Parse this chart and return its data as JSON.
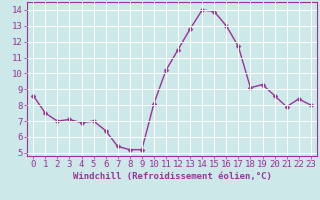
{
  "x": [
    0,
    1,
    2,
    3,
    4,
    5,
    6,
    7,
    8,
    9,
    10,
    11,
    12,
    13,
    14,
    15,
    16,
    17,
    18,
    19,
    20,
    21,
    22,
    23
  ],
  "y": [
    8.6,
    7.5,
    7.0,
    7.1,
    6.9,
    7.0,
    6.4,
    5.4,
    5.2,
    5.2,
    8.1,
    10.2,
    11.5,
    12.8,
    14.0,
    13.9,
    13.0,
    11.7,
    9.1,
    9.3,
    8.6,
    7.9,
    8.4,
    8.0
  ],
  "line_color": "#993399",
  "marker": "D",
  "marker_size": 2.5,
  "bg_color": "#cce8e8",
  "grid_color": "#ffffff",
  "axis_label_color": "#993399",
  "tick_color": "#993399",
  "xlabel": "Windchill (Refroidissement éolien,°C)",
  "xlim": [
    -0.5,
    23.5
  ],
  "ylim": [
    4.8,
    14.5
  ],
  "yticks": [
    5,
    6,
    7,
    8,
    9,
    10,
    11,
    12,
    13,
    14
  ],
  "xticks": [
    0,
    1,
    2,
    3,
    4,
    5,
    6,
    7,
    8,
    9,
    10,
    11,
    12,
    13,
    14,
    15,
    16,
    17,
    18,
    19,
    20,
    21,
    22,
    23
  ],
  "spine_color": "#993399",
  "font_size": 6.5,
  "label_font_size": 6.5,
  "linewidth": 1.0
}
